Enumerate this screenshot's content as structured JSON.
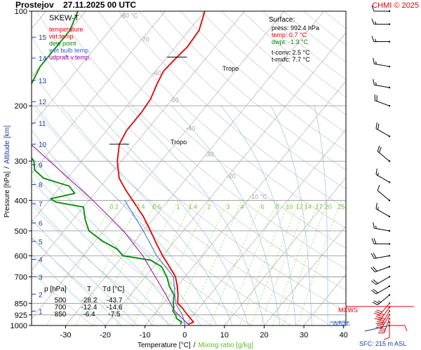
{
  "header": {
    "station": "Prostejov",
    "datetime": "27.11.2025 00 UTC",
    "credit": "CHMI © 2025"
  },
  "legend": {
    "title": "SKEW-T",
    "items": [
      {
        "label": "temperature",
        "color": "#e00000"
      },
      {
        "label": "virt.temp.",
        "color": "#e00000"
      },
      {
        "label": "dew point",
        "color": "#008800"
      },
      {
        "label": "wet bulb temp.",
        "color": "#3366cc"
      },
      {
        "label": "udpraft v.temp.",
        "color": "#990099"
      }
    ]
  },
  "surface": {
    "title": "Surface:",
    "press": "press: 992.4 hPa",
    "temp": "temp: 0.7 °C",
    "dwpt": "dwpt: -1.3 °C",
    "tconv": "t-conv: 2.5 °C",
    "tmxfc": "t-mxfc: 7.7 °C"
  },
  "table": {
    "header": [
      "p [hPa]",
      "T",
      "Td [°C]"
    ],
    "rows": [
      [
        "500",
        "-28.2",
        "-43.7"
      ],
      [
        "700",
        "-12.4",
        "-14.6"
      ],
      [
        "850",
        "-6.4",
        "-7.5"
      ]
    ]
  },
  "labels": {
    "tropo1": "Tropo",
    "tropo2": "Tropo",
    "mxws": "MXWS",
    "wbzl": "WBZL",
    "sfc": "SFC: 215 m ASL"
  },
  "axes": {
    "xlabel_temp": "Temperature [°C]",
    "xlabel_sep": "/",
    "xlabel_mix": "Mixing ratio [g/kg]",
    "ylabel_p": "Pressure [hPa]",
    "ylabel_sep": "/",
    "ylabel_alt": "Altitude [km]"
  },
  "colors": {
    "temperature": "#e00000",
    "dewpoint": "#008800",
    "wetbulb": "#3366cc",
    "parcel": "#990099",
    "isotherm": "#b0b0b0",
    "dry_adiabat": "#c8c8c8",
    "moist_adiabat": "#90c8e0",
    "mixing_ratio": "#a8e070",
    "altitude": "#1a3aa8",
    "isobar": "#909090"
  },
  "chart_data": {
    "type": "line",
    "title": "Prostejov 27.11.2025 00 UTC",
    "xlabel": "Temperature [°C] / Mixing ratio [g/kg]",
    "ylabel": "Pressure [hPa] / Altitude [km]",
    "xlim": [
      -35,
      50
    ],
    "ylim": [
      1000,
      100
    ],
    "y_scale": "log",
    "x_ticks": [
      -30,
      -20,
      -10,
      0,
      10,
      20,
      30,
      40
    ],
    "pressure_ticks": [
      100,
      200,
      300,
      400,
      500,
      600,
      700,
      850,
      925,
      1000
    ],
    "altitude_ticks_km": [
      {
        "km": 1,
        "p": 900
      },
      {
        "km": 2,
        "p": 795
      },
      {
        "km": 3,
        "p": 700
      },
      {
        "km": 4,
        "p": 616
      },
      {
        "km": 5,
        "p": 540
      },
      {
        "km": 6,
        "p": 472
      },
      {
        "km": 7,
        "p": 410
      },
      {
        "km": 8,
        "p": 356
      },
      {
        "km": 9,
        "p": 308
      },
      {
        "km": 10,
        "p": 265
      },
      {
        "km": 11,
        "p": 227
      },
      {
        "km": 12,
        "p": 194
      },
      {
        "km": 13,
        "p": 166
      },
      {
        "km": 14,
        "p": 141
      },
      {
        "km": 15,
        "p": 121
      }
    ],
    "isotherm_labels": [
      -80,
      -70,
      -60,
      -50,
      -40,
      -30,
      -20,
      -10
    ],
    "mixing_ratio_labels": [
      "0.2",
      "0.4",
      "0.6",
      "1",
      "1.4",
      "2",
      "3",
      "4",
      "6",
      "8",
      "10",
      "12",
      "14",
      "17",
      "20",
      "25"
    ],
    "series": [
      {
        "name": "temperature",
        "points": [
          [
            992,
            0.7
          ],
          [
            975,
            1.5
          ],
          [
            950,
            0.0
          ],
          [
            925,
            -1.5
          ],
          [
            900,
            -3.0
          ],
          [
            875,
            -4.5
          ],
          [
            850,
            -6.4
          ],
          [
            800,
            -8.0
          ],
          [
            750,
            -10.0
          ],
          [
            700,
            -12.4
          ],
          [
            650,
            -16.0
          ],
          [
            600,
            -20.0
          ],
          [
            550,
            -24.0
          ],
          [
            500,
            -28.2
          ],
          [
            450,
            -33.0
          ],
          [
            400,
            -39.0
          ],
          [
            370,
            -43.0
          ],
          [
            340,
            -47.0
          ],
          [
            300,
            -51.0
          ],
          [
            265,
            -54.0
          ],
          [
            240,
            -55.0
          ],
          [
            210,
            -55.0
          ],
          [
            190,
            -55.5
          ],
          [
            170,
            -57.0
          ],
          [
            155,
            -58.0
          ],
          [
            140,
            -57.5
          ],
          [
            130,
            -57.0
          ],
          [
            115,
            -57.5
          ],
          [
            100,
            -60.0
          ]
        ]
      },
      {
        "name": "dew point",
        "points": [
          [
            992,
            -1.3
          ],
          [
            975,
            -1.5
          ],
          [
            950,
            -3.5
          ],
          [
            925,
            -4.5
          ],
          [
            900,
            -6.0
          ],
          [
            875,
            -6.5
          ],
          [
            850,
            -7.5
          ],
          [
            800,
            -9.0
          ],
          [
            750,
            -12.0
          ],
          [
            700,
            -14.6
          ],
          [
            650,
            -18.0
          ],
          [
            620,
            -22.0
          ],
          [
            600,
            -30.0
          ],
          [
            570,
            -33.0
          ],
          [
            540,
            -38.0
          ],
          [
            500,
            -43.7
          ],
          [
            460,
            -47.0
          ],
          [
            420,
            -50.0
          ],
          [
            405,
            -58.0
          ],
          [
            395,
            -60.0
          ],
          [
            380,
            -55.0
          ],
          [
            360,
            -58.0
          ],
          [
            340,
            -66.0
          ],
          [
            320,
            -70.0
          ],
          [
            300,
            -72.0
          ],
          [
            270,
            -78.0
          ],
          [
            240,
            -82.0
          ],
          [
            210,
            -86.0
          ],
          [
            180,
            -88.0
          ],
          [
            150,
            -90.0
          ],
          [
            130,
            -90.0
          ],
          [
            115,
            -90.0
          ],
          [
            100,
            -92.0
          ]
        ]
      },
      {
        "name": "wet bulb temp.",
        "points": [
          [
            992,
            -0.2
          ],
          [
            925,
            -2.8
          ],
          [
            850,
            -6.9
          ],
          [
            700,
            -12.9
          ],
          [
            600,
            -21.5
          ],
          [
            500,
            -30.0
          ],
          [
            400,
            -41.0
          ]
        ]
      },
      {
        "name": "udpraft v.temp.",
        "points": [
          [
            992,
            0.7
          ],
          [
            900,
            -5.5
          ],
          [
            800,
            -11.0
          ],
          [
            700,
            -17.5
          ],
          [
            600,
            -25.0
          ],
          [
            500,
            -35.0
          ],
          [
            400,
            -49.0
          ],
          [
            300,
            -68.0
          ],
          [
            200,
            -95.0
          ],
          [
            100,
            -135.0
          ]
        ]
      }
    ],
    "tropopause": [
      {
        "label": "Tropo",
        "p": 140,
        "t": -57.5
      },
      {
        "label": "Tropo",
        "p": 265,
        "t": -54.0
      }
    ],
    "wind_barbs": [
      {
        "p": 1000,
        "dir": 90,
        "spd": 10
      },
      {
        "p": 975,
        "dir": 180,
        "spd": 10
      },
      {
        "p": 950,
        "dir": 200,
        "spd": 30
      },
      {
        "p": 925,
        "dir": 210,
        "spd": 40
      },
      {
        "p": 900,
        "dir": 210,
        "spd": 40
      },
      {
        "p": 875,
        "dir": 215,
        "spd": 35
      },
      {
        "p": 850,
        "dir": 220,
        "spd": 30
      },
      {
        "p": 800,
        "dir": 230,
        "spd": 25
      },
      {
        "p": 750,
        "dir": 240,
        "spd": 20
      },
      {
        "p": 700,
        "dir": 240,
        "spd": 20
      },
      {
        "p": 650,
        "dir": 250,
        "spd": 20
      },
      {
        "p": 600,
        "dir": 260,
        "spd": 20
      },
      {
        "p": 550,
        "dir": 270,
        "spd": 20
      },
      {
        "p": 500,
        "dir": 280,
        "spd": 15
      },
      {
        "p": 450,
        "dir": 300,
        "spd": 15
      },
      {
        "p": 400,
        "dir": 310,
        "spd": 10
      },
      {
        "p": 350,
        "dir": 300,
        "spd": 15
      },
      {
        "p": 300,
        "dir": 310,
        "spd": 20
      },
      {
        "p": 250,
        "dir": 300,
        "spd": 20
      },
      {
        "p": 200,
        "dir": 290,
        "spd": 20
      },
      {
        "p": 175,
        "dir": 280,
        "spd": 15
      },
      {
        "p": 150,
        "dir": 280,
        "spd": 15
      },
      {
        "p": 125,
        "dir": 270,
        "spd": 15
      },
      {
        "p": 110,
        "dir": 270,
        "spd": 15
      },
      {
        "p": 100,
        "dir": 270,
        "spd": 10
      }
    ]
  }
}
